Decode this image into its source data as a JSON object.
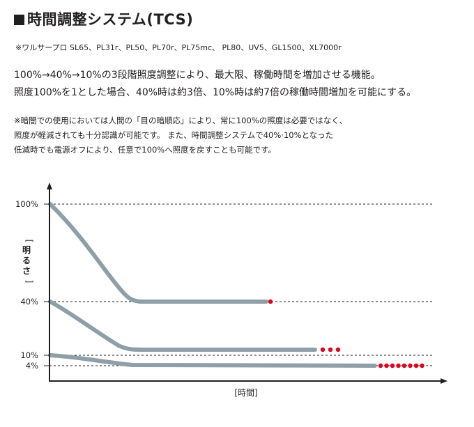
{
  "header": {
    "title": "時間調整システム(TCS)",
    "models": "※ワルサープロ SL65、PL31r、PL50、PL70r、PL75mc、 PL80、UV5、GL1500、XL7000r"
  },
  "description": {
    "line1": "100%→40%→10%の3段階照度調整により、最大限、稼働時間を増加させる機能。",
    "line2": "照度100%を1とした場合、40%時は約3倍、10%時は約7倍の稼働時間増加を可能にする。"
  },
  "notes": {
    "line1": "※暗闇での使用においては人間の「目の暗順応」により、常に100%の照度は必要ではなく、",
    "line2": "照度が軽減されても十分認識が可能です。 また、時間調整システムで40%·10%となった",
    "line3": "低減時でも電源オフにより、任意で100%へ照度を戻すことも可能です。"
  },
  "chart_data": {
    "type": "line",
    "ylabel": "[明るさ]",
    "xlabel": "[時間]",
    "y_ticks": [
      "100%",
      "40%",
      "10%",
      "4%"
    ],
    "y_tick_values": [
      100,
      40,
      10,
      4
    ],
    "grid": "dashed horizontal reference lines at tick values",
    "series": [
      {
        "start": 100,
        "level": 40,
        "extension_dots": 1
      },
      {
        "start": 40,
        "level": 10,
        "extension_dots": 3
      },
      {
        "start": 10,
        "level": 4,
        "extension_dots": 8
      }
    ],
    "colors": {
      "line": "#8e9fa8",
      "dots": "#e3001b",
      "axis": "#231f20"
    }
  }
}
